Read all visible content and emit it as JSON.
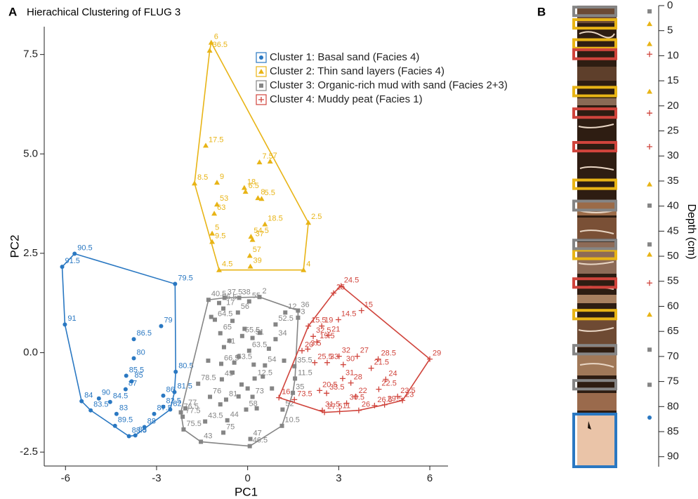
{
  "chart_data": [
    {
      "type": "scatter",
      "panel": "A",
      "title": "Hierachical Clustering of FLUG 3",
      "xlabel": "PC1",
      "ylabel": "PC2",
      "xlim": [
        -6.7,
        6.6
      ],
      "ylim": [
        -2.85,
        8.2
      ],
      "xticks": [
        -6,
        -3,
        0,
        3,
        6
      ],
      "yticks": [
        -2.5,
        {
          "value": 0,
          "label": "0.0"
        },
        2.5,
        {
          "value": 5,
          "label": "5.0"
        },
        7.5
      ],
      "legend_loc": "upper center",
      "series": [
        {
          "name": "Cluster 1: Basal sand (Facies 4)",
          "color": "#2a78c2",
          "marker": "circle",
          "x": [
            -5.7,
            -6.11,
            -6.02,
            -2.39,
            -2.85,
            -3.75,
            -3.75,
            -4.0,
            -2.37,
            -3.82,
            -2.41,
            -4.02,
            -2.78,
            -4.9,
            -4.53,
            -5.47,
            -2.78,
            -2.55,
            -5.17,
            -4.32,
            -3.08,
            -4.37,
            -3.4,
            -3.91,
            -3.7
          ],
          "y": [
            2.49,
            2.16,
            0.71,
            1.73,
            0.67,
            0.34,
            -0.14,
            -0.58,
            -0.48,
            -0.72,
            -0.99,
            -0.92,
            -1.08,
            -1.15,
            -1.24,
            -1.22,
            -1.36,
            -1.43,
            -1.45,
            -1.54,
            -1.54,
            -1.84,
            -1.87,
            -2.1,
            -2.08
          ],
          "labels": [
            90.5,
            91.5,
            91,
            79.5,
            79,
            86.5,
            80,
            85.5,
            80.5,
            85,
            81.5,
            87,
            86,
            90,
            84.5,
            84,
            82.5,
            82,
            83.5,
            83,
            87.5,
            89.5,
            88,
            88.5,
            89
          ],
          "core_intervals": [
            [
              81.5,
              92
            ]
          ]
        },
        {
          "name": "Cluster 2: Thin sand layers (Facies 4)",
          "color": "#e8b416",
          "marker": "triangle",
          "x": [
            -1.2,
            -1.25,
            -1.38,
            0.74,
            -1.01,
            -0.11,
            0.39,
            -0.07,
            0.34,
            -1.75,
            -1.01,
            0.46,
            -1.1,
            0.57,
            0.11,
            -1.17,
            -1.17,
            0.16,
            0.07,
            -0.94,
            0.09,
            1.84,
            2.0
          ],
          "y": [
            7.8,
            7.6,
            5.21,
            4.81,
            4.28,
            4.15,
            4.79,
            4.05,
            3.89,
            4.26,
            3.73,
            3.87,
            3.5,
            3.23,
            2.92,
            3.0,
            2.79,
            2.84,
            2.44,
            2.08,
            2.17,
            2.08,
            3.27
          ],
          "labels": [
            6,
            36.5,
            17.5,
            7,
            9,
            18,
            7.5,
            6.5,
            8,
            8.5,
            53,
            5.5,
            63,
            18.5,
            54.5,
            5,
            9.5,
            37,
            57,
            4.5,
            39,
            4,
            2.5
          ],
          "core_intervals": [
            [
              2.8,
              4.5
            ],
            [
              6.8,
              8.5
            ],
            [
              16.3,
              18
            ],
            [
              34.8,
              36.5
            ],
            [
              48.8,
              50.5
            ],
            [
              60.8,
              62.5
            ]
          ]
        },
        {
          "name": "Cluster 3: Organic-rich mud with sand (Facies 2+3)",
          "color": "#858585",
          "marker": "square",
          "x": [
            -0.76,
            -0.28,
            0.39,
            -1.29,
            -0.94,
            0.05,
            -0.8,
            1.66,
            -1.08,
            -0.32,
            1.24,
            1.66,
            0.92,
            -0.9,
            -0.18,
            0.16,
            0.92,
            -0.78,
            0.05,
            0.57,
            -0.87,
            -0.44,
            0.23,
            1.54,
            1.56,
            -0.85,
            -1.63,
            1.49,
            -1.24,
            -0.71,
            0.16,
            -2.2,
            1.15,
            -0.05,
            -2.14,
            -1.4,
            -0.67,
            1.13,
            -2.11,
            -0.8,
            0.09,
            -1.54,
            0.07,
            -2.05,
            -1.2,
            -0.5,
            -0.1,
            0.4,
            -0.6,
            0.7,
            -0.3,
            0.2,
            -0.5,
            0.5,
            -0.2,
            0.8,
            -0.9,
            0.3,
            -0.3,
            1.2,
            -1.3,
            0.0
          ],
          "y": [
            1.38,
            1.38,
            1.4,
            1.33,
            1.25,
            1.29,
            1.11,
            1.06,
            0.83,
            1.01,
            1.01,
            0.88,
            0.71,
            0.49,
            0.42,
            0.37,
            0.34,
            0.14,
            0.05,
            -0.32,
            -0.28,
            -0.25,
            -0.65,
            -0.34,
            -0.65,
            -0.67,
            -0.78,
            -1.01,
            -1.11,
            -1.18,
            -1.11,
            -1.5,
            -1.43,
            -1.43,
            -1.61,
            -1.73,
            -1.7,
            -1.84,
            -1.93,
            -2.01,
            -2.17,
            -2.24,
            -2.35,
            -1.4,
            0.9,
            0.8,
            0.6,
            0.5,
            0.3,
            0.1,
            -0.1,
            -0.3,
            -0.5,
            -0.6,
            -0.8,
            -0.9,
            -1.3,
            -1.4,
            -1.1,
            -0.2,
            -0.2,
            -0.9
          ],
          "labels": [
            37.5,
            38,
            2,
            40.5,
            56.5,
            55,
            17,
            36,
            64.5,
            56,
            12,
            3,
            52.5,
            65,
            55.5,
            51,
            34,
            41,
            63.5,
            54,
            66.5,
            53.5,
            12.5,
            35.5,
            11.5,
            45,
            78.5,
            35,
            76,
            81,
            73,
            76.5,
            52,
            58,
            77.5,
            43.5,
            44,
            10.5,
            75.5,
            75,
            47,
            43,
            46.5,
            77,
            null,
            null,
            null,
            null,
            null,
            null,
            null,
            null,
            null,
            null,
            null,
            null,
            null,
            null,
            null,
            null,
            null,
            null
          ],
          "core_intervals": [
            [
              0.3,
              2
            ],
            [
              39,
              40.8
            ],
            [
              46.8,
              48.5
            ],
            [
              67.8,
              69.5
            ],
            [
              74.8,
              76.5
            ]
          ]
        },
        {
          "name": "Cluster 4: Muddy peat (Facies 1)",
          "color": "#d0443c",
          "marker": "cross",
          "x": [
            3.08,
            2.83,
            3.75,
            2.99,
            2.44,
            2.0,
            2.16,
            2.67,
            2.28,
            1.79,
            1.98,
            3.01,
            3.61,
            4.3,
            2.21,
            2.62,
            3.15,
            4.07,
            6.0,
            4.55,
            3.13,
            3.4,
            2.37,
            2.6,
            4.32,
            4.94,
            3.56,
            1.03,
            1.54,
            3.26,
            3.66,
            5.1,
            4.51,
            4.18,
            2.46,
            3.03,
            2.53
          ],
          "y": [
            1.68,
            1.5,
            1.06,
            0.83,
            0.67,
            0.67,
            0.41,
            0.44,
            0.27,
            0.05,
            0.09,
            -0.09,
            -0.09,
            -0.16,
            -0.25,
            -0.25,
            -0.3,
            -0.39,
            -0.16,
            -0.67,
            -0.65,
            -0.76,
            -0.95,
            -1.02,
            -0.92,
            -1.1,
            -1.1,
            -1.13,
            -1.18,
            -1.27,
            -1.45,
            -1.2,
            -1.31,
            -1.33,
            -1.45,
            -1.48,
            -1.5
          ],
          "labels": [
            24.5,
            25,
            15,
            14.5,
            19,
            15.5,
            32.5,
            21,
            19.5,
            20,
            3.5,
            32,
            27,
            28.5,
            25.5,
            33,
            30,
            21.5,
            29,
            24,
            31,
            28,
            20.5,
            33.5,
            22.5,
            23.5,
            22,
            16,
            73.5,
            30.5,
            26,
            23,
            29.5,
            26.5,
            31.5,
            11,
            27.5
          ],
          "core_intervals": [
            [
              8.8,
              10.6
            ],
            [
              20.6,
              22.3
            ],
            [
              27.3,
              29
            ],
            [
              54.5,
              56.2
            ]
          ]
        }
      ]
    },
    {
      "type": "core",
      "panel": "B",
      "ylabel": "Depth (cm)",
      "ylim": [
        0,
        92
      ],
      "yticks": [
        0,
        5,
        10,
        15,
        20,
        25,
        30,
        35,
        40,
        45,
        50,
        55,
        60,
        65,
        70,
        75,
        80,
        85,
        90
      ]
    }
  ]
}
